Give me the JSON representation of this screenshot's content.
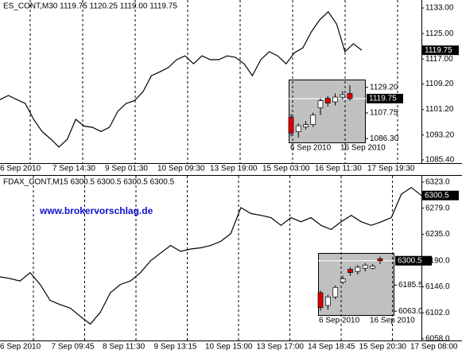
{
  "chart_data": [
    {
      "type": "line",
      "title": "ES_CONT,M30 1119.75 1120.25 1119.00 1119.75",
      "color": "#000000",
      "x_labels": [
        "6 Sep 2010",
        "7 Sep 14:30",
        "9 Sep 01:30",
        "10 Sep 09:30",
        "13 Sep 19:00",
        "15 Sep 03:00",
        "16 Sep 11:30",
        "17 Sep 19:30"
      ],
      "values": [
        1104.3,
        1105.6,
        1104.3,
        1103.1,
        1098.1,
        1094.3,
        1092.0,
        1089.4,
        1091.9,
        1098.1,
        1096.0,
        1095.6,
        1094.3,
        1095.6,
        1100.6,
        1103.1,
        1104.0,
        1106.8,
        1111.8,
        1113.0,
        1114.3,
        1116.8,
        1118.0,
        1115.5,
        1118.0,
        1116.8,
        1116.8,
        1118.0,
        1117.5,
        1115.5,
        1111.8,
        1116.8,
        1119.3,
        1118.0,
        1115.5,
        1119.0,
        1120.5,
        1125.5,
        1129.3,
        1131.8,
        1128.0,
        1119.3,
        1121.8,
        1119.75
      ],
      "ylim": [
        1084.4,
        1135.5
      ],
      "yticks": [
        {
          "value": 1133,
          "label": "1133.00"
        },
        {
          "value": 1125,
          "label": "1125.00"
        },
        {
          "value": 1117,
          "label": "1117.00"
        },
        {
          "value": 1109.2,
          "label": "1109.20"
        },
        {
          "value": 1101.2,
          "label": "1101.20"
        },
        {
          "value": 1093.2,
          "label": "1093.20"
        },
        {
          "value": 1085.4,
          "label": "1085.40"
        }
      ],
      "last": {
        "value": 1119.75,
        "label": "1119.75"
      }
    },
    {
      "type": "line",
      "title": "FDAX_CONT,M15 6300.5 6300.5 6300.5 6300.5",
      "color": "#000000",
      "watermark": "www.brokervorschlag.de",
      "x_labels": [
        "6 Sep 2010",
        "7 Sep 09:45",
        "8 Sep 11:30",
        "9 Sep 13:15",
        "10 Sep 15:00",
        "13 Sep 17:00",
        "14 Sep 18:45",
        "15 Sep 20:30",
        "17 Sep 08:00"
      ],
      "values": [
        6163,
        6160,
        6156,
        6170,
        6150,
        6123,
        6116,
        6110,
        6096,
        6083,
        6103,
        6136,
        6150,
        6156,
        6170,
        6190,
        6203,
        6216,
        6206,
        6210,
        6212,
        6216,
        6223,
        6236,
        6280,
        6270,
        6267,
        6263,
        6250,
        6263,
        6256,
        6263,
        6250,
        6243,
        6256,
        6267,
        6256,
        6250,
        6256,
        6263,
        6303,
        6314,
        6300.5
      ],
      "ylim": [
        6055.3,
        6333.8
      ],
      "yticks": [
        {
          "value": 6323,
          "label": "6323.0"
        },
        {
          "value": 6279,
          "label": "6279.0"
        },
        {
          "value": 6235,
          "label": "6235.0"
        },
        {
          "value": 6190,
          "label": "6190.0"
        },
        {
          "value": 6146,
          "label": "6146.0"
        },
        {
          "value": 6102,
          "label": "6102.0"
        },
        {
          "value": 6058,
          "label": "6058.0"
        }
      ],
      "last": {
        "value": 6300.5,
        "label": "6300.5"
      }
    },
    {
      "type": "candlestick",
      "x_labels": [
        "6 Sep 2010",
        "16 Sep 2010"
      ],
      "open": [
        1104,
        1092,
        1096,
        1098,
        1112,
        1120,
        1117,
        1121,
        1124
      ],
      "high": [
        1107,
        1099,
        1101,
        1108,
        1120,
        1122,
        1124,
        1126,
        1131
      ],
      "low": [
        1088,
        1087,
        1094,
        1096,
        1106,
        1113,
        1114,
        1119,
        1118
      ],
      "close": [
        1091,
        1097,
        1098,
        1106,
        1118,
        1116,
        1121,
        1123,
        1119.75
      ],
      "ylim": [
        1082.4,
        1135.7
      ],
      "yticks": [
        {
          "value": 1129.2,
          "label": "1129.20"
        },
        {
          "value": 1107.75,
          "label": "1107.75"
        },
        {
          "value": 1086.3,
          "label": "1086.30"
        }
      ],
      "last": {
        "value": 1119.75,
        "label": "1119.75"
      }
    },
    {
      "type": "candlestick",
      "x_labels": [
        "6 Sep 2010",
        "16 Sep 2010"
      ],
      "open": [
        6150,
        6090,
        6130,
        6200,
        6260,
        6250,
        6265,
        6265,
        6310
      ],
      "high": [
        6160,
        6140,
        6185,
        6230,
        6270,
        6280,
        6290,
        6285,
        6320
      ],
      "low": [
        6065,
        6070,
        6120,
        6190,
        6230,
        6235,
        6250,
        6260,
        6285
      ],
      "close": [
        6080,
        6130,
        6175,
        6215,
        6245,
        6270,
        6280,
        6275,
        6300.5
      ],
      "ylim": [
        6045,
        6337
      ],
      "yticks": [
        {
          "value": 6185.5,
          "label": "6185.5"
        },
        {
          "value": 6063,
          "label": "6063.0"
        }
      ],
      "last": {
        "value": 6300.5,
        "label": "6300.5"
      }
    }
  ]
}
